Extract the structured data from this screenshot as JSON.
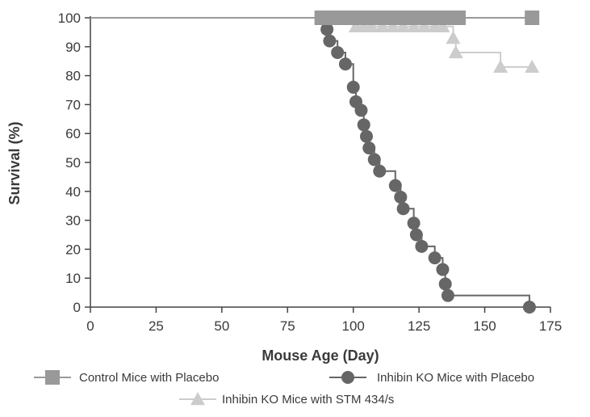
{
  "chart_data": {
    "type": "line",
    "subtype": "kaplan-meier survival curve",
    "title": "",
    "xlabel": "Mouse Age (Day)",
    "ylabel": "Survival (%)",
    "xlim": [
      0,
      175
    ],
    "ylim": [
      0,
      100
    ],
    "x_ticks": [
      0,
      25,
      50,
      75,
      100,
      125,
      150,
      175
    ],
    "y_ticks": [
      0,
      10,
      20,
      30,
      40,
      50,
      60,
      70,
      80,
      90,
      100
    ],
    "grid": false,
    "legend_position": "bottom",
    "series": [
      {
        "name": "Control Mice with Placebo",
        "color": "#999999",
        "marker": "square",
        "step": [
          [
            0,
            100
          ],
          [
            168,
            100
          ]
        ],
        "markers": [
          [
            88,
            100
          ],
          [
            90,
            100
          ],
          [
            93,
            100
          ],
          [
            96,
            100
          ],
          [
            99,
            100
          ],
          [
            102,
            100
          ],
          [
            104,
            100
          ],
          [
            107,
            100
          ],
          [
            110,
            100
          ],
          [
            113,
            100
          ],
          [
            116,
            100
          ],
          [
            119,
            100
          ],
          [
            122,
            100
          ],
          [
            125,
            100
          ],
          [
            128,
            100
          ],
          [
            131,
            100
          ],
          [
            134,
            100
          ],
          [
            137,
            100
          ],
          [
            140,
            100
          ],
          [
            168,
            100
          ]
        ]
      },
      {
        "name": "Inhibin KO Mice with Placebo",
        "color": "#666666",
        "marker": "circle",
        "step": [
          [
            0,
            100
          ],
          [
            89,
            100
          ],
          [
            90,
            96
          ],
          [
            91,
            92
          ],
          [
            94,
            88
          ],
          [
            97,
            84
          ],
          [
            100,
            76
          ],
          [
            101,
            71
          ],
          [
            103,
            68
          ],
          [
            104,
            63
          ],
          [
            105,
            59
          ],
          [
            106,
            55
          ],
          [
            108,
            51
          ],
          [
            110,
            47
          ],
          [
            116,
            42
          ],
          [
            118,
            38
          ],
          [
            119,
            34
          ],
          [
            123,
            29
          ],
          [
            124,
            25
          ],
          [
            126,
            21
          ],
          [
            131,
            17
          ],
          [
            134,
            13
          ],
          [
            135,
            8
          ],
          [
            136,
            4
          ],
          [
            167,
            0
          ]
        ],
        "markers": [
          [
            90,
            96
          ],
          [
            91,
            92
          ],
          [
            94,
            88
          ],
          [
            97,
            84
          ],
          [
            100,
            76
          ],
          [
            101,
            71
          ],
          [
            103,
            68
          ],
          [
            104,
            63
          ],
          [
            105,
            59
          ],
          [
            106,
            55
          ],
          [
            108,
            51
          ],
          [
            110,
            47
          ],
          [
            116,
            42
          ],
          [
            118,
            38
          ],
          [
            119,
            34
          ],
          [
            123,
            29
          ],
          [
            124,
            25
          ],
          [
            126,
            21
          ],
          [
            131,
            17
          ],
          [
            134,
            13
          ],
          [
            135,
            8
          ],
          [
            136,
            4
          ],
          [
            167,
            0
          ]
        ]
      },
      {
        "name": "Inhibin KO Mice with STM 434/s",
        "color": "#cccccc",
        "marker": "triangle",
        "step": [
          [
            0,
            100
          ],
          [
            101,
            100
          ],
          [
            101,
            97
          ],
          [
            138,
            97
          ],
          [
            138,
            93
          ],
          [
            139,
            88
          ],
          [
            156,
            83
          ],
          [
            168,
            83
          ]
        ],
        "markers": [
          [
            101,
            97
          ],
          [
            104,
            97
          ],
          [
            107,
            97
          ],
          [
            111,
            97
          ],
          [
            115,
            97
          ],
          [
            119,
            97
          ],
          [
            123,
            97
          ],
          [
            127,
            97
          ],
          [
            131,
            97
          ],
          [
            134,
            97
          ],
          [
            138,
            93
          ],
          [
            139,
            88
          ],
          [
            156,
            83
          ],
          [
            168,
            83
          ]
        ]
      }
    ]
  }
}
